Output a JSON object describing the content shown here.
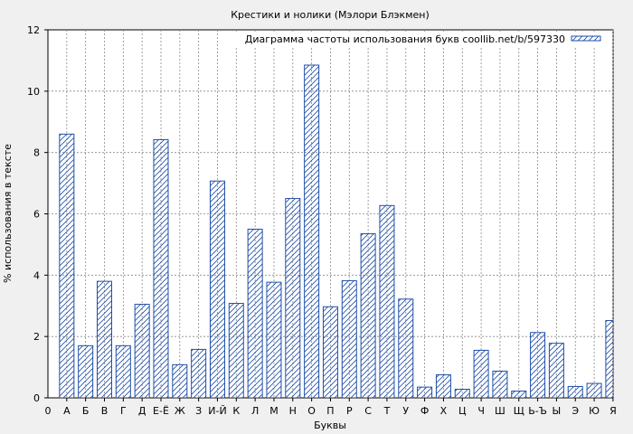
{
  "chart_data": {
    "type": "bar",
    "title": "Крестики и нолики (Мэлори Блэкмен)",
    "xlabel": "Буквы",
    "ylabel": "% использования в тексте",
    "ylim": [
      0,
      12
    ],
    "yticks": [
      0,
      2,
      4,
      6,
      8,
      10,
      12
    ],
    "grid": true,
    "legend_position": "top-right",
    "x_origin_label": "0",
    "categories": [
      "А",
      "Б",
      "В",
      "Г",
      "Д",
      "Е-Ё",
      "Ж",
      "З",
      "И-Й",
      "К",
      "Л",
      "М",
      "Н",
      "О",
      "П",
      "Р",
      "С",
      "Т",
      "У",
      "Ф",
      "Х",
      "Ц",
      "Ч",
      "Ш",
      "Щ",
      "Ь-Ъ",
      "Ы",
      "Э",
      "Ю",
      "Я"
    ],
    "series": [
      {
        "name": "Диаграмма частоты использования букв coollib.net/b/597330",
        "color": "#1f4fa8",
        "values": [
          8.6,
          1.7,
          3.8,
          1.7,
          3.05,
          8.42,
          1.08,
          1.58,
          7.07,
          3.08,
          5.5,
          3.77,
          6.5,
          10.85,
          2.97,
          3.82,
          5.35,
          6.27,
          3.22,
          0.35,
          0.75,
          0.28,
          1.55,
          0.87,
          0.22,
          2.13,
          1.78,
          0.37,
          0.47,
          2.52
        ]
      }
    ]
  }
}
